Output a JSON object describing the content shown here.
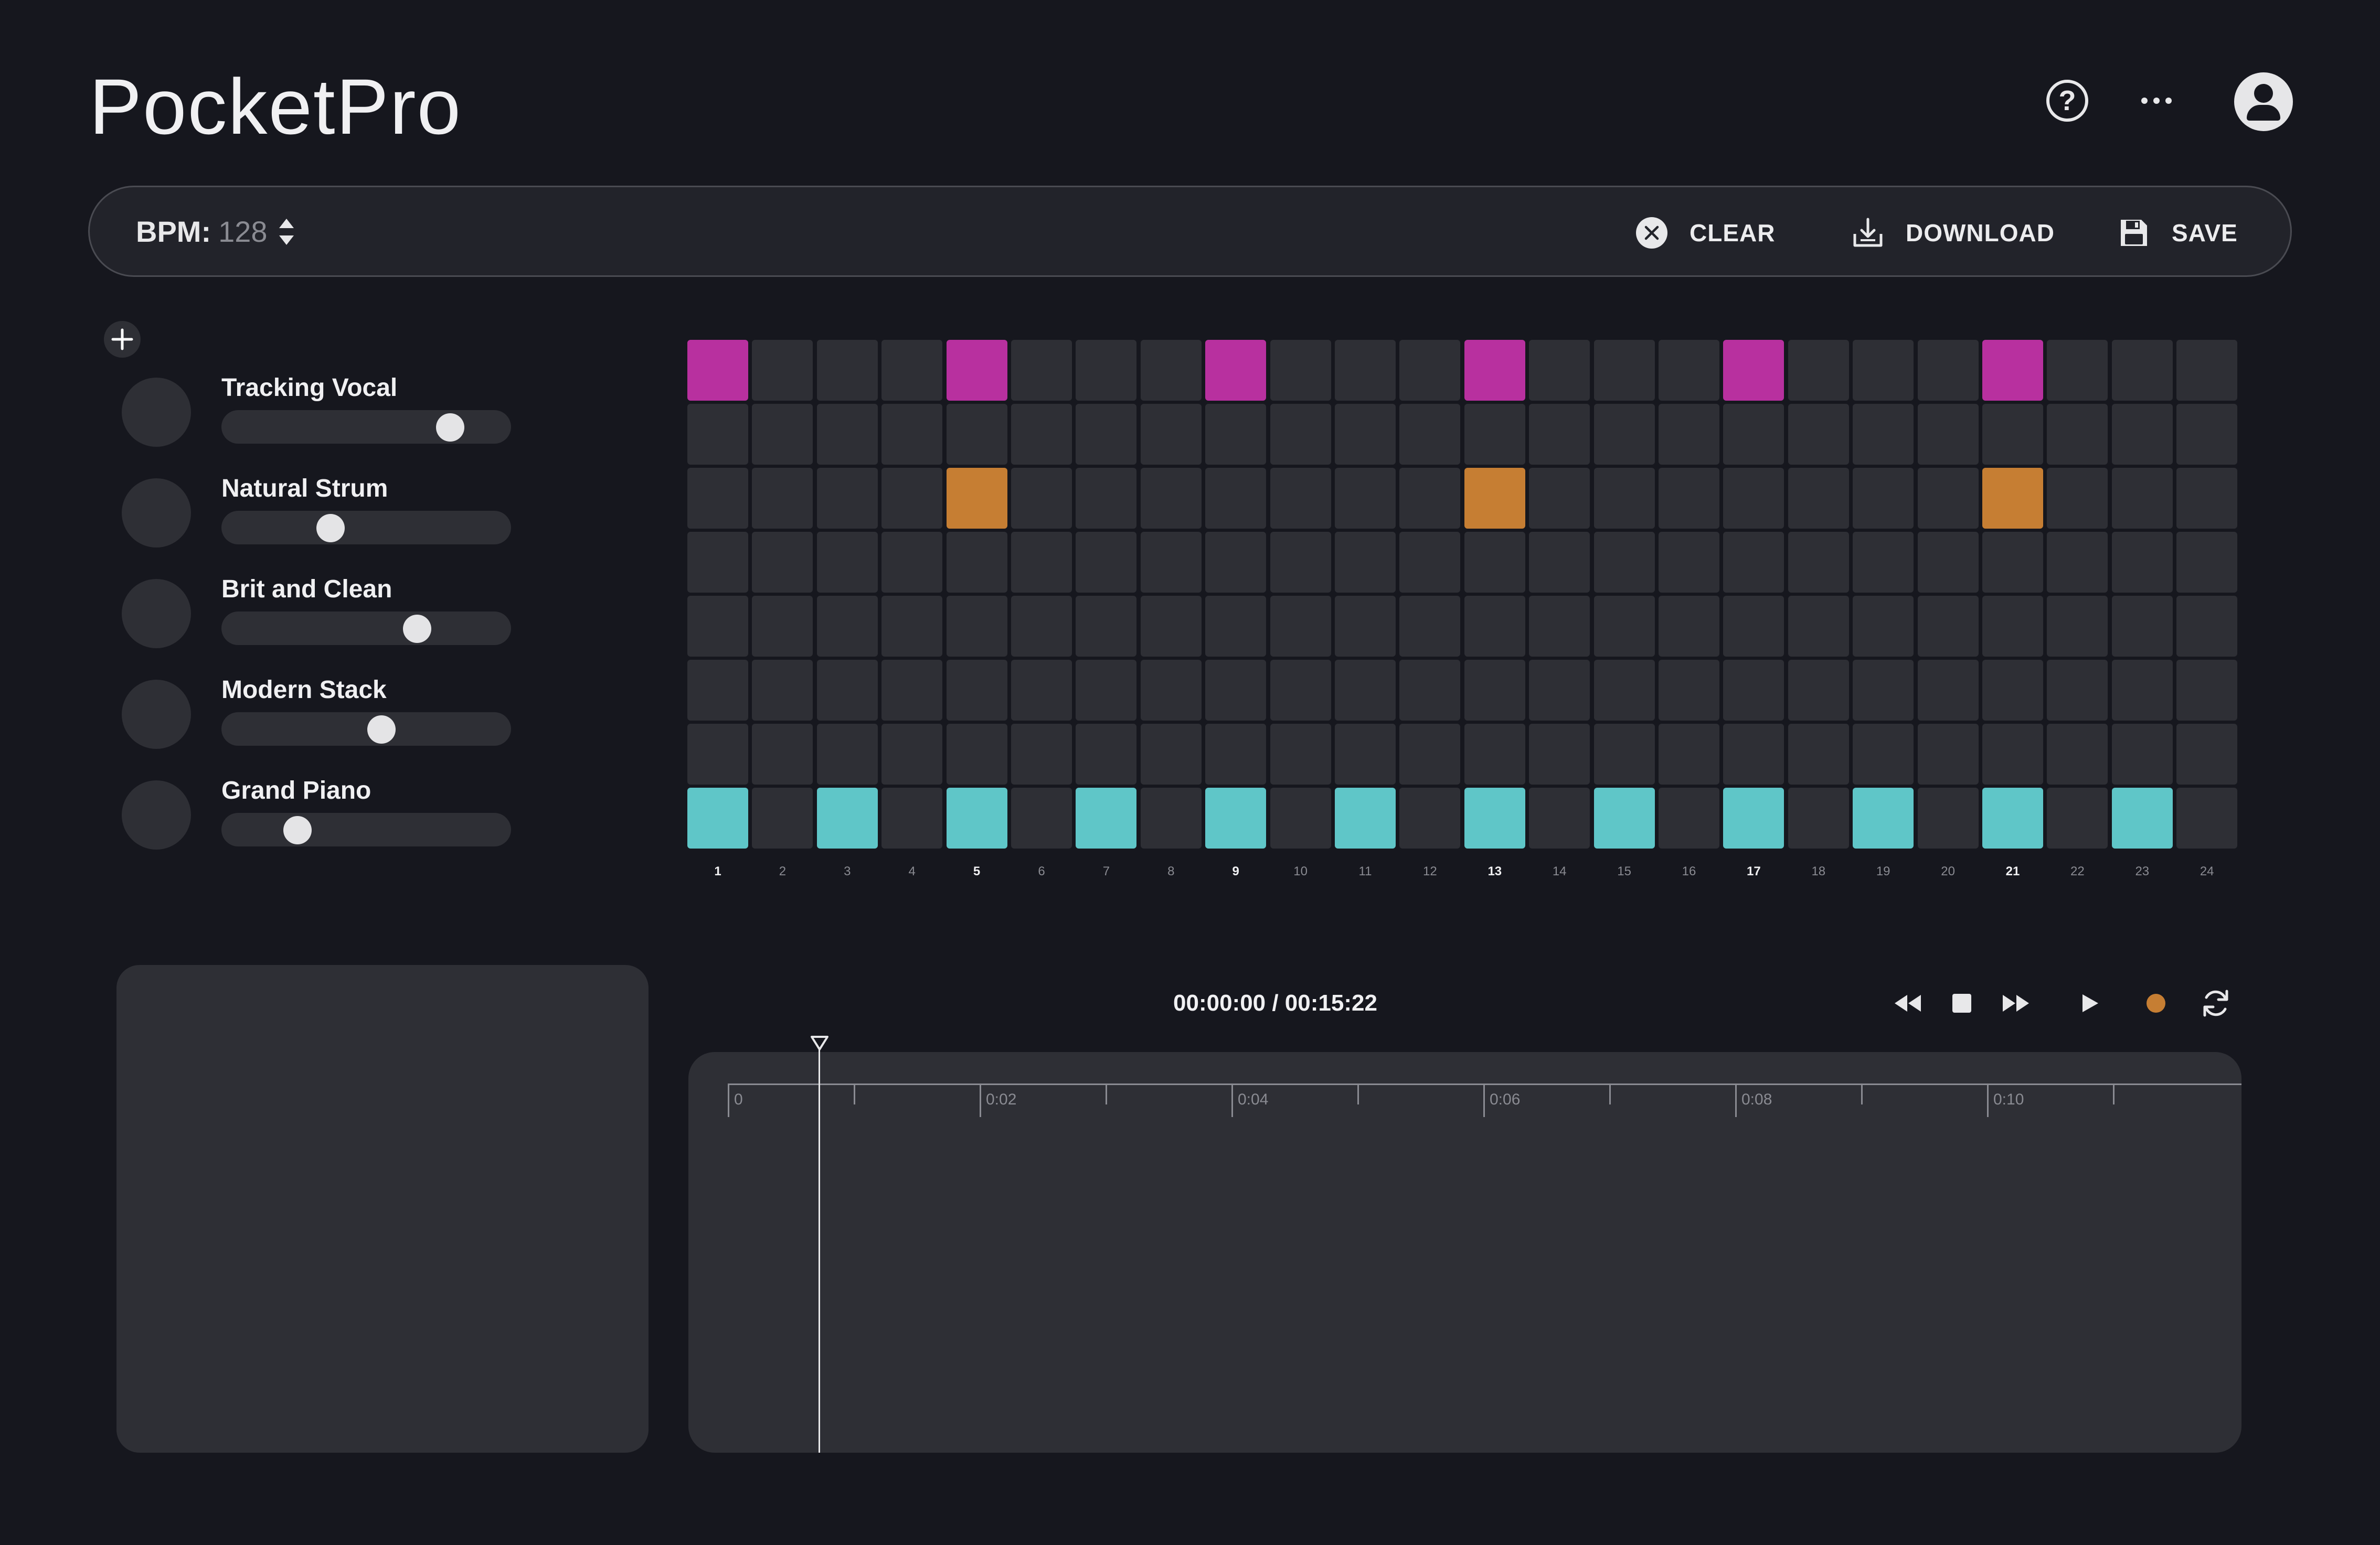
{
  "header": {
    "app_title": "PocketPro",
    "icons": [
      "help-icon",
      "more-icon",
      "user-avatar-icon"
    ]
  },
  "toolbar": {
    "bpm_label": "BPM:",
    "bpm_value": "128",
    "clear_label": "CLEAR",
    "download_label": "DOWNLOAD",
    "save_label": "SAVE"
  },
  "tracks": [
    {
      "name": "Tracking Vocal",
      "volume": 0.83
    },
    {
      "name": "Natural Strum",
      "volume": 0.36
    },
    {
      "name": "Brit and Clean",
      "volume": 0.7
    },
    {
      "name": "Modern Stack",
      "volume": 0.56
    },
    {
      "name": "Grand Piano",
      "volume": 0.23
    }
  ],
  "sequencer": {
    "steps": 24,
    "rows": 8,
    "step_labels": [
      "1",
      "2",
      "3",
      "4",
      "5",
      "6",
      "7",
      "8",
      "9",
      "10",
      "11",
      "12",
      "13",
      "14",
      "15",
      "16",
      "17",
      "18",
      "19",
      "20",
      "21",
      "22",
      "23",
      "24"
    ],
    "active": {
      "row_0": [
        1,
        5,
        9,
        13,
        17,
        21
      ],
      "row_2": [
        5,
        13,
        21
      ],
      "row_7": [
        1,
        3,
        5,
        7,
        9,
        11,
        13,
        15,
        17,
        19,
        21,
        23
      ]
    },
    "colors": {
      "row_0": "#b8309f",
      "row_2": "#c67e33",
      "row_7": "#5fc6c8",
      "off": "#2e2f35"
    }
  },
  "transport": {
    "time_current": "00:00:00",
    "time_total": "00:15:22",
    "time_readout": "00:00:00 / 00:15:22",
    "icons": [
      "rewind-icon",
      "stop-icon",
      "fast-forward-icon",
      "play-icon",
      "record-icon",
      "loop-icon"
    ],
    "record_color": "#c67e33"
  },
  "timeline": {
    "labels": [
      "0",
      "0:02",
      "0:04",
      "0:06",
      "0:08",
      "0:10"
    ],
    "playhead_seconds": 0.36
  }
}
